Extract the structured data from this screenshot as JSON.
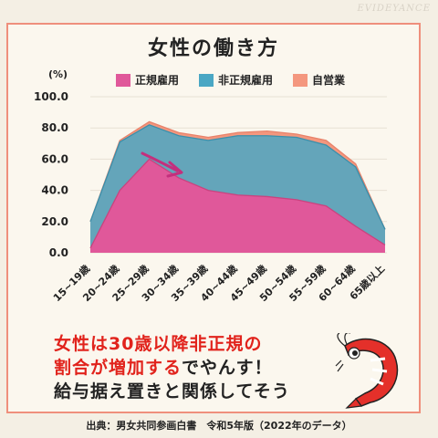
{
  "watermark": "EVIDEYANCE",
  "colors": {
    "regular": "#e0589a",
    "nonregular": "#4aa7c4",
    "self": "#f4977e",
    "card_border": "#ef8f7c",
    "accent_red": "#e1231c"
  },
  "chart_data": {
    "type": "area",
    "stacked": true,
    "title": "女性の働き方",
    "ylabel": "(%)",
    "xlabel": "",
    "categories": [
      "15~19歳",
      "20~24歳",
      "25~29歳",
      "30~34歳",
      "35~39歳",
      "40~44歳",
      "45~49歳",
      "50~54歳",
      "55~59歳",
      "60~64歳",
      "65歳以上"
    ],
    "ylim": [
      0,
      100
    ],
    "yticks": [
      "0.0",
      "20.0",
      "40.0",
      "60.0",
      "80.0",
      "100.0"
    ],
    "grid": true,
    "legend_position": "top",
    "series": [
      {
        "name": "正規雇用",
        "values": [
          3,
          40,
          60,
          48,
          40,
          37,
          36,
          34,
          30,
          17,
          5
        ]
      },
      {
        "name": "非正規雇用",
        "values": [
          17,
          31,
          22,
          27,
          32,
          38,
          39,
          40,
          39,
          38,
          10
        ]
      },
      {
        "name": "自営業",
        "values": [
          0,
          1,
          2,
          2,
          2,
          2,
          3,
          2,
          3,
          2,
          0
        ]
      }
    ],
    "annotations": [
      "decreasing-arrow"
    ]
  },
  "message": {
    "line1": "女性は30歳以降非正規の",
    "line2_red": "割合が増加する",
    "line2_black": "でやんす！",
    "line3": "給与据え置きと関係してそう"
  },
  "footer": "出典：男女共同参画白書　令和5年版（2022年のデータ）"
}
